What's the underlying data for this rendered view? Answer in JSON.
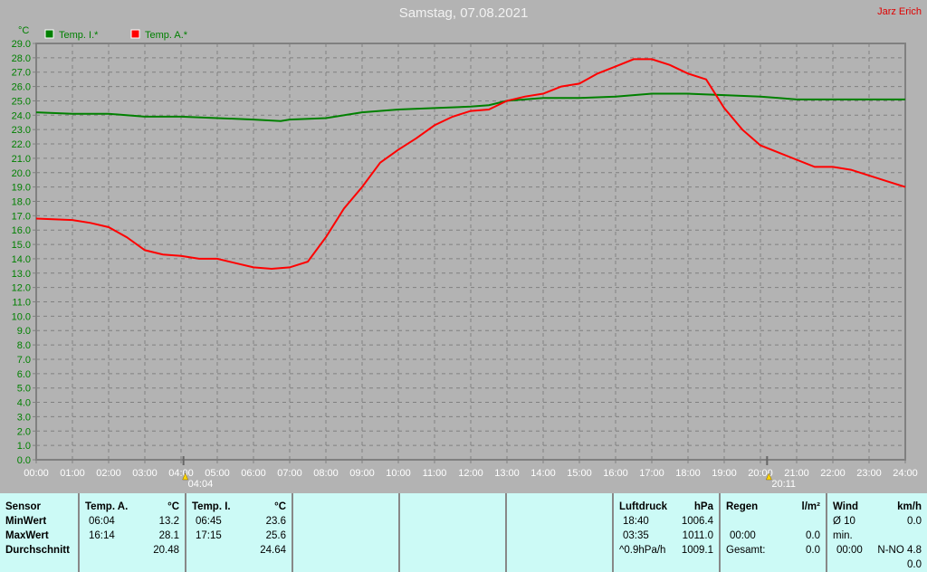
{
  "header": {
    "title": "Samstag, 07.08.2021",
    "author": "Jarz Erich"
  },
  "chart_data": {
    "type": "line",
    "ylabel": "°C",
    "ylim": [
      0,
      29
    ],
    "yticks": [
      "0.0",
      "1.0",
      "2.0",
      "3.0",
      "4.0",
      "5.0",
      "6.0",
      "7.0",
      "8.0",
      "9.0",
      "10.0",
      "11.0",
      "12.0",
      "13.0",
      "14.0",
      "15.0",
      "16.0",
      "17.0",
      "18.0",
      "19.0",
      "20.0",
      "21.0",
      "22.0",
      "23.0",
      "24.0",
      "25.0",
      "26.0",
      "27.0",
      "28.0",
      "29.0"
    ],
    "xticks": [
      "00:00",
      "01:00",
      "02:00",
      "03:00",
      "04:00",
      "05:00",
      "06:00",
      "07:00",
      "08:00",
      "09:00",
      "10:00",
      "11:00",
      "12:00",
      "13:00",
      "14:00",
      "15:00",
      "16:00",
      "17:00",
      "18:00",
      "19:00",
      "20:00",
      "21:00",
      "22:00",
      "23:00",
      "24:00"
    ],
    "grid": true,
    "legend": "top-left",
    "markers": [
      {
        "label": "04:04",
        "time": "04:04",
        "icon": "sunrise-icon"
      },
      {
        "label": "20:11",
        "time": "20:11",
        "icon": "sunset-icon"
      }
    ],
    "series": [
      {
        "name": "Temp. I.*",
        "color": "#008000",
        "x": [
          "00:00",
          "01:00",
          "02:00",
          "03:00",
          "04:00",
          "05:00",
          "06:00",
          "06:45",
          "07:00",
          "08:00",
          "09:00",
          "10:00",
          "11:00",
          "12:00",
          "12:30",
          "13:00",
          "14:00",
          "15:00",
          "16:00",
          "17:00",
          "18:00",
          "19:00",
          "20:00",
          "20:30",
          "21:00",
          "22:00",
          "24:00"
        ],
        "values": [
          24.2,
          24.1,
          24.1,
          23.9,
          23.9,
          23.8,
          23.7,
          23.6,
          23.7,
          23.8,
          24.2,
          24.4,
          24.5,
          24.6,
          24.7,
          25.0,
          25.2,
          25.2,
          25.3,
          25.5,
          25.5,
          25.4,
          25.3,
          25.2,
          25.1,
          25.1,
          25.1
        ]
      },
      {
        "name": "Temp. A.*",
        "color": "#ff0000",
        "x": [
          "00:00",
          "01:00",
          "01:30",
          "02:00",
          "02:30",
          "03:00",
          "03:30",
          "04:00",
          "04:30",
          "05:00",
          "05:30",
          "06:00",
          "06:30",
          "07:00",
          "07:30",
          "08:00",
          "08:30",
          "09:00",
          "09:30",
          "10:00",
          "10:30",
          "11:00",
          "11:30",
          "12:00",
          "12:30",
          "13:00",
          "13:30",
          "14:00",
          "14:30",
          "15:00",
          "15:30",
          "16:00",
          "16:30",
          "17:00",
          "17:30",
          "18:00",
          "18:30",
          "19:00",
          "19:30",
          "20:00",
          "20:30",
          "21:00",
          "21:30",
          "22:00",
          "22:30",
          "23:00",
          "23:30",
          "24:00"
        ],
        "values": [
          16.8,
          16.7,
          16.5,
          16.2,
          15.5,
          14.6,
          14.3,
          14.2,
          14.0,
          14.0,
          13.7,
          13.4,
          13.3,
          13.4,
          13.8,
          15.5,
          17.5,
          19.0,
          20.7,
          21.6,
          22.4,
          23.3,
          23.9,
          24.3,
          24.4,
          25.0,
          25.3,
          25.5,
          26.0,
          26.2,
          26.9,
          27.4,
          27.9,
          27.9,
          27.5,
          26.9,
          26.5,
          24.5,
          23.0,
          21.9,
          21.4,
          20.9,
          20.4,
          20.4,
          20.2,
          19.8,
          19.4,
          19.0
        ]
      }
    ]
  },
  "stats": {
    "sensor": {
      "h": "Sensor",
      "rows": [
        "MinWert",
        "MaxWert",
        "Durchschnitt"
      ]
    },
    "temp_a": {
      "h": "Temp. A.",
      "unit": "°C",
      "min_t": "06:04",
      "min": "13.2",
      "max_t": "16:14",
      "max": "28.1",
      "avg": "20.48"
    },
    "temp_i": {
      "h": "Temp. I.",
      "unit": "°C",
      "min_t": "06:45",
      "min": "23.6",
      "max_t": "17:15",
      "max": "25.6",
      "avg": "24.64"
    },
    "luftdruck": {
      "h": "Luftdruck",
      "unit": "hPa",
      "min_t": "18:40",
      "min": "1006.4",
      "max_t": "03:35",
      "max": "1011.0",
      "trend": "^0.9hPa/h",
      "avg": "1009.1"
    },
    "regen": {
      "h": "Regen",
      "unit": "l/m²",
      "t": "00:00",
      "v": "0.0",
      "total_l": "Gesamt:",
      "total": "0.0"
    },
    "wind": {
      "h": "Wind",
      "unit": "km/h",
      "avg_l": "Ø 10 min.",
      "avg": "0.0",
      "t": "00:00",
      "max": "N-NO 4.8",
      "v3": "0.0"
    }
  }
}
